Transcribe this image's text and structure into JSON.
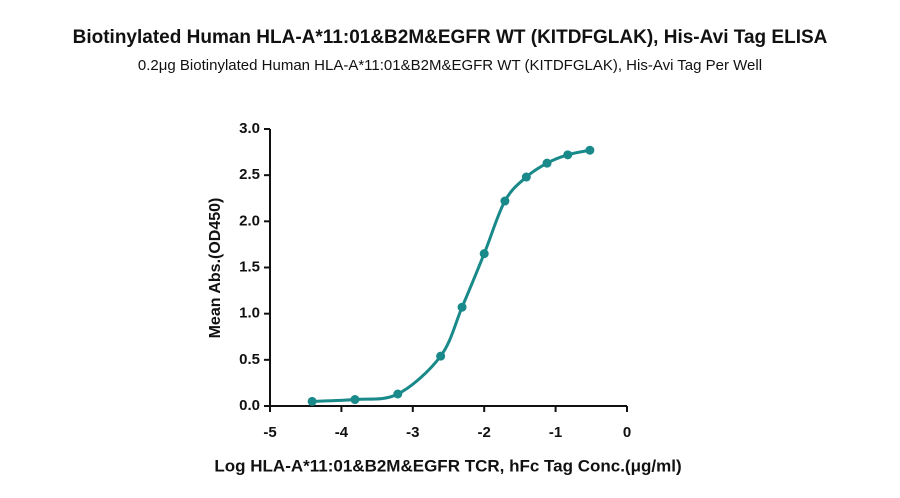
{
  "chart_data": {
    "type": "scatter",
    "title": "Biotinylated Human HLA-A*11:01&B2M&EGFR WT (KITDFGLAK), His-Avi Tag ELISA",
    "subtitle": "0.2μg Biotinylated Human HLA-A*11:01&B2M&EGFR WT (KITDFGLAK), His-Avi Tag Per Well",
    "x_label": "Log HLA-A*11:01&B2M&EGFR TCR, hFc Tag Conc.(μg/ml)",
    "y_label": "Mean Abs.(OD450)",
    "x": [
      -4.41,
      -3.81,
      -3.21,
      -2.61,
      -2.31,
      -2.0,
      -1.71,
      -1.41,
      -1.12,
      -0.83,
      -0.52
    ],
    "values": [
      0.05,
      0.07,
      0.13,
      0.54,
      1.07,
      1.65,
      2.22,
      2.48,
      2.63,
      2.72,
      2.77
    ],
    "color": "#19898a",
    "xlim": [
      -5,
      0
    ],
    "xticks": [
      -5,
      -4,
      -3,
      -2,
      -1,
      0
    ],
    "ylim": [
      0,
      3
    ],
    "yticks": [
      {
        "value": 0,
        "label": "0.0"
      },
      {
        "value": 0.5,
        "label": "0.5"
      },
      {
        "value": 1,
        "label": "1.0"
      },
      {
        "value": 1.5,
        "label": "1.5"
      },
      {
        "value": 2,
        "label": "2.0"
      },
      {
        "value": 2.5,
        "label": "2.5"
      },
      {
        "value": 3,
        "label": "3.0"
      }
    ]
  }
}
